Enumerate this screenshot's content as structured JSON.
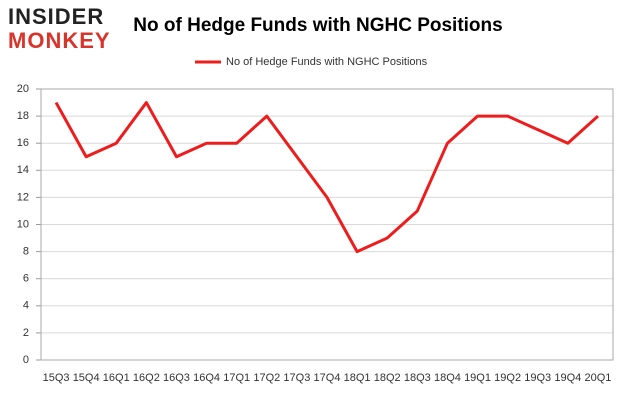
{
  "logo": [
    "INSIDER",
    "MONKEY"
  ],
  "chart_data": {
    "type": "line",
    "title": "No of Hedge Funds with NGHC Positions",
    "categories": [
      "15Q3",
      "15Q4",
      "16Q1",
      "16Q2",
      "16Q3",
      "16Q4",
      "17Q1",
      "17Q2",
      "17Q3",
      "17Q4",
      "18Q1",
      "18Q2",
      "18Q3",
      "18Q4",
      "19Q1",
      "19Q2",
      "19Q3",
      "19Q4",
      "20Q1"
    ],
    "series": [
      {
        "name": "No of Hedge Funds with NGHC Positions",
        "color": "#ee1c1c",
        "values": [
          19,
          15,
          16,
          19,
          15,
          16,
          16,
          18,
          15,
          12,
          8,
          9,
          11,
          16,
          18,
          18,
          17,
          16,
          18
        ]
      }
    ],
    "ylim": [
      0,
      20
    ],
    "yticks": [
      0,
      2,
      4,
      6,
      8,
      10,
      12,
      14,
      16,
      18,
      20
    ],
    "grid": true,
    "legend": "top"
  }
}
